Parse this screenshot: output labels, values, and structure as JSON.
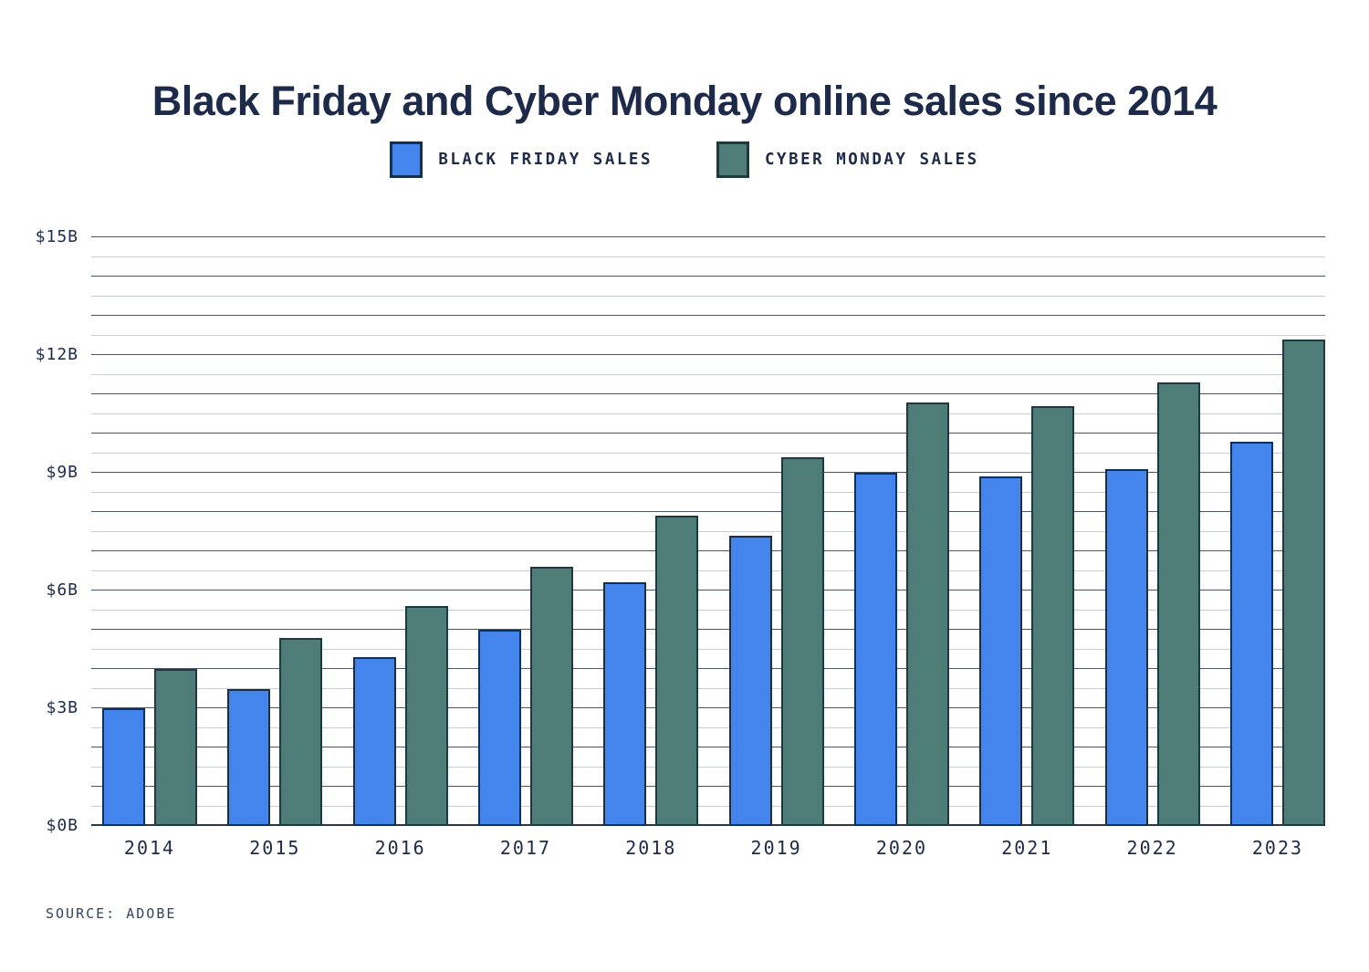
{
  "chart_data": {
    "type": "bar",
    "title": "Black Friday and Cyber Monday online sales since 2014",
    "source": "SOURCE: ADOBE",
    "categories": [
      "2014",
      "2015",
      "2016",
      "2017",
      "2018",
      "2019",
      "2020",
      "2021",
      "2022",
      "2023"
    ],
    "series": [
      {
        "name": "BLACK FRIDAY SALES",
        "slug": "black-friday",
        "color": "#4484ed",
        "border_color": "#15304f",
        "values": [
          3.0,
          3.5,
          4.3,
          5.0,
          6.2,
          7.4,
          9.0,
          8.9,
          9.1,
          9.8
        ]
      },
      {
        "name": "CYBER MONDAY SALES",
        "slug": "cyber-monday",
        "color": "#4e7d77",
        "border_color": "#1e3a40",
        "values": [
          4.0,
          4.8,
          5.6,
          6.6,
          7.9,
          9.4,
          10.8,
          10.7,
          11.3,
          12.4
        ]
      }
    ],
    "yticks": [
      {
        "value": 0,
        "label": "$0B"
      },
      {
        "value": 3,
        "label": "$3B"
      },
      {
        "value": 6,
        "label": "$6B"
      },
      {
        "value": 9,
        "label": "$9B"
      },
      {
        "value": 12,
        "label": "$12B"
      },
      {
        "value": 15,
        "label": "$15B"
      }
    ],
    "ylim": [
      0,
      15
    ],
    "minor_grid_step": 0.5,
    "major_grid_step": 1,
    "grid": "horizontal",
    "legend_position": "top",
    "values_unit": "$B"
  }
}
